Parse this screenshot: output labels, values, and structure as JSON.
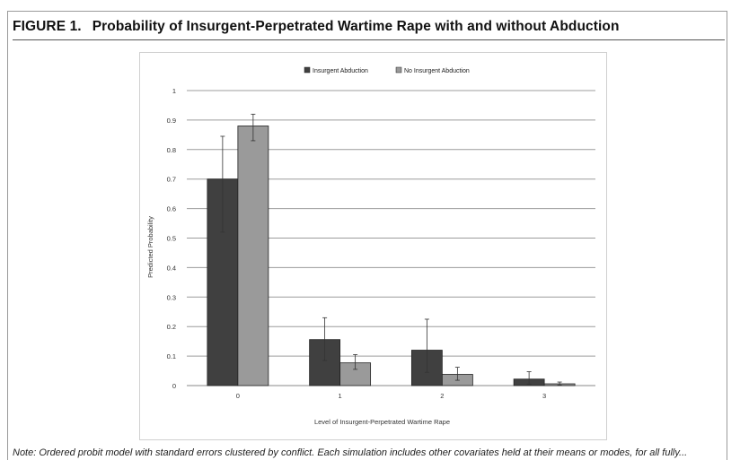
{
  "figure": {
    "label": "FIGURE 1.",
    "title": "Probability of Insurgent-Perpetrated Wartime Rape with and without Abduction",
    "note": "Note: Ordered probit model with standard errors clustered by conflict. Each simulation includes other covariates held at their means or modes, for all fully..."
  },
  "chart_data": {
    "type": "bar",
    "categories": [
      "0",
      "1",
      "2",
      "3"
    ],
    "series": [
      {
        "name": "Insurgent Abduction",
        "color": "#404040",
        "values": [
          0.7,
          0.156,
          0.12,
          0.022
        ],
        "error_low": [
          0.52,
          0.085,
          0.045,
          0.005
        ],
        "error_high": [
          0.845,
          0.23,
          0.225,
          0.047
        ]
      },
      {
        "name": "No Insurgent Abduction",
        "color": "#9a9a9a",
        "values": [
          0.88,
          0.077,
          0.038,
          0.006
        ],
        "error_low": [
          0.83,
          0.055,
          0.018,
          0.002
        ],
        "error_high": [
          0.92,
          0.105,
          0.062,
          0.012
        ]
      }
    ],
    "yticks": [
      "0",
      "0.1",
      "0.2",
      "0.3",
      "0.4",
      "0.5",
      "0.6",
      "0.7",
      "0.8",
      "0.9",
      "1"
    ],
    "ylim": [
      0,
      1
    ],
    "xlabel": "Level of Insurgent-Perpetrated Wartime Rape",
    "ylabel": "Predicted Probability",
    "grid": true,
    "legend_position": "top"
  }
}
